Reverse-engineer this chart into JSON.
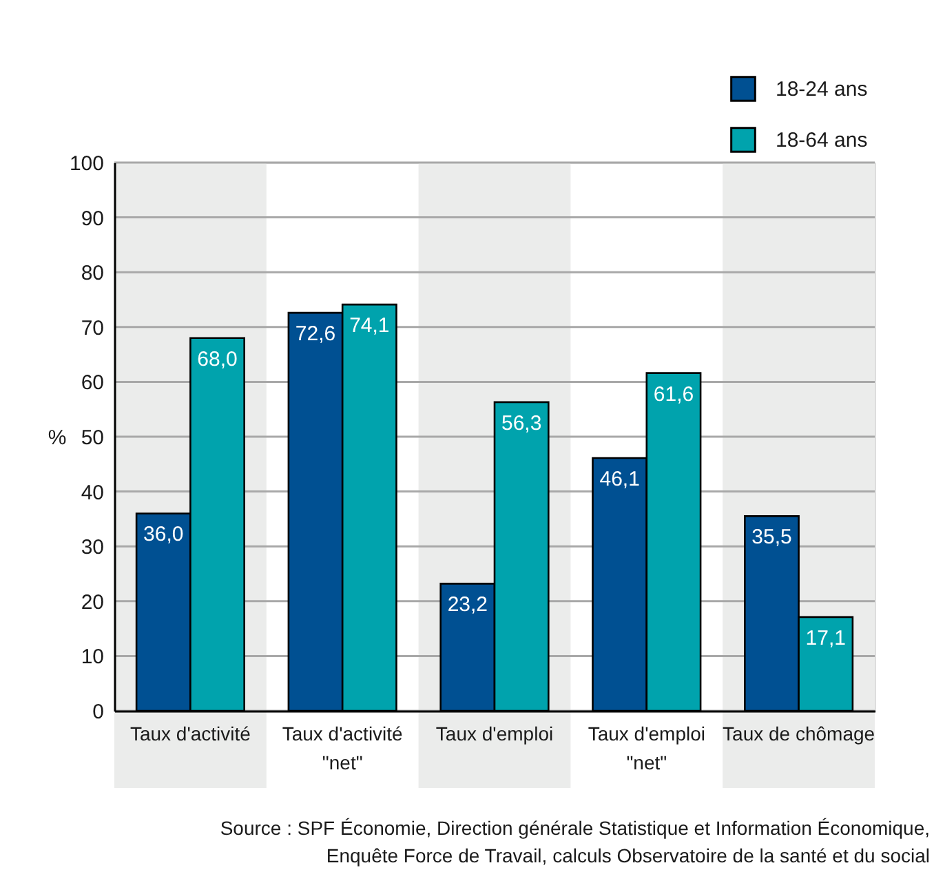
{
  "chart_data": {
    "type": "bar",
    "categories": [
      "Taux d'activité",
      "Taux d'activité\n\"net\"",
      "Taux d'emploi",
      "Taux d'emploi\n\"net\"",
      "Taux de chômage"
    ],
    "series": [
      {
        "name": "18-24 ans",
        "color": "#005092",
        "values": [
          36.0,
          72.6,
          23.2,
          46.1,
          35.5
        ],
        "value_labels": [
          "36,0",
          "72,6",
          "23,2",
          "46,1",
          "35,5"
        ]
      },
      {
        "name": "18-64 ans",
        "color": "#00a3ad",
        "values": [
          68.0,
          74.1,
          56.3,
          61.6,
          17.1
        ],
        "value_labels": [
          "68,0",
          "74,1",
          "56,3",
          "61,6",
          "17,1"
        ]
      }
    ],
    "ylabel": "%",
    "ylim": [
      0,
      100
    ],
    "yticks": [
      0,
      10,
      20,
      30,
      40,
      50,
      60,
      70,
      80,
      90,
      100
    ],
    "grid": "y",
    "legend": "top right",
    "bands": [
      {
        "axis": "x",
        "from": "Taux d'activité",
        "to": "Taux d'activité",
        "color": "#ebeceb"
      },
      {
        "axis": "x",
        "from": "Taux d'emploi",
        "to": "Taux d'emploi",
        "color": "#ebeceb"
      },
      {
        "axis": "x",
        "from": "Taux de chômage",
        "to": "Taux de chômage",
        "color": "#ebeceb"
      }
    ],
    "annotations": [
      "Source : SPF Économie, Direction générale Statistique et Information Économique, Enquête Force de Travail, calculs Observatoire de la santé et du social"
    ]
  }
}
